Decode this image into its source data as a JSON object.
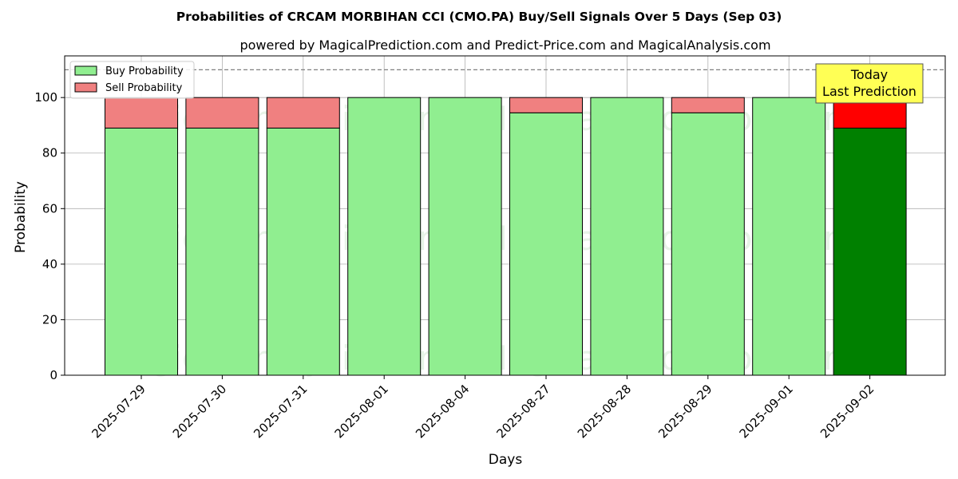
{
  "chart_data": {
    "type": "bar",
    "stacked": true,
    "title": "Probabilities of CRCAM MORBIHAN CCI (CMO.PA) Buy/Sell Signals Over 5 Days (Sep 03)",
    "subtitle": "powered by MagicalPrediction.com and Predict-Price.com and MagicalAnalysis.com",
    "xlabel": "Days",
    "ylabel": "Probability",
    "ylim": [
      0,
      115
    ],
    "yticks": [
      0,
      20,
      40,
      60,
      80,
      100
    ],
    "yticks_text": [
      "0",
      "20",
      "40",
      "60",
      "80",
      "100"
    ],
    "reference_line": 110,
    "grid": true,
    "legend_position": "top-left",
    "categories": [
      "2025-07-29",
      "2025-07-30",
      "2025-07-31",
      "2025-08-01",
      "2025-08-04",
      "2025-08-27",
      "2025-08-28",
      "2025-08-29",
      "2025-09-01",
      "2025-09-02"
    ],
    "series": [
      {
        "name": "Buy Probability",
        "color": "#90ee90",
        "highlight_color": "#008000",
        "values": [
          89,
          89,
          89,
          100,
          100,
          94.5,
          100,
          94.5,
          100,
          89
        ]
      },
      {
        "name": "Sell Probability",
        "color": "#f08080",
        "highlight_color": "#ff0000",
        "values": [
          11,
          11,
          11,
          0,
          0,
          5.5,
          0,
          5.5,
          0,
          11
        ]
      }
    ],
    "highlight_index": 9,
    "annotation": {
      "line1": "Today",
      "line2": "Last Prediction",
      "color": "#ffff55"
    },
    "watermarks": [
      "MagicalAnalysis.com",
      "MagicalPrediction.com"
    ]
  }
}
